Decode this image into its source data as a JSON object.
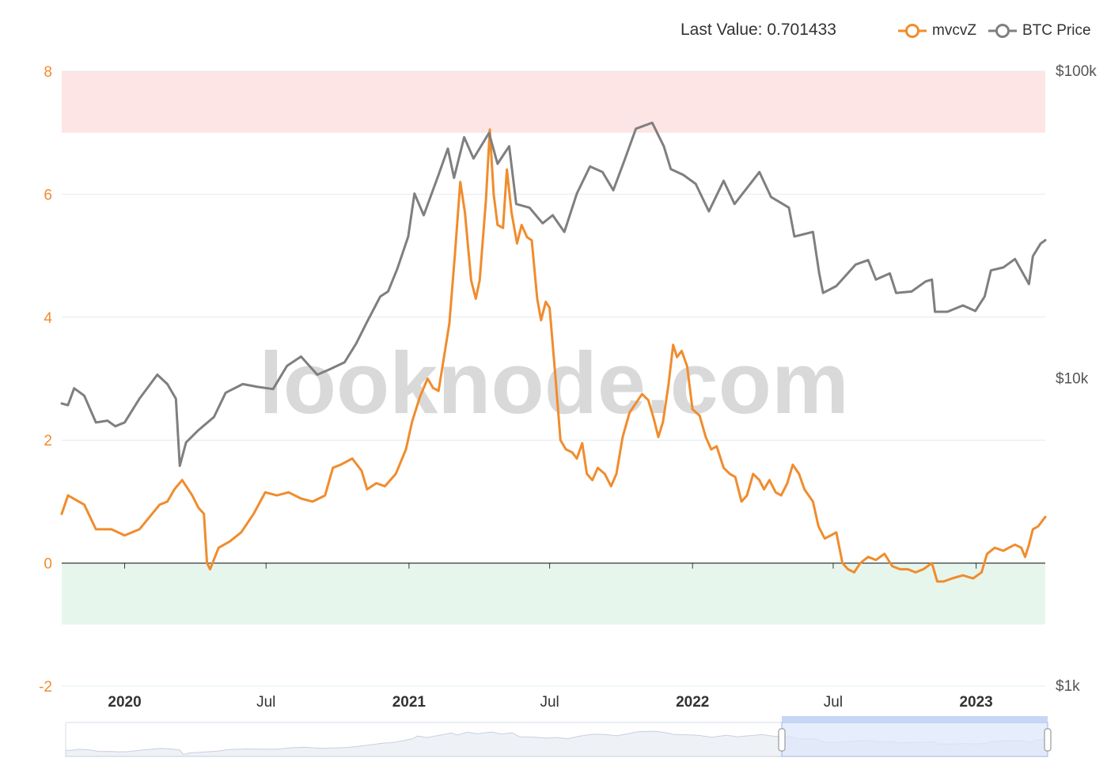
{
  "header": {
    "last_value_label": "Last Value:",
    "last_value": "0.701433"
  },
  "legend": [
    {
      "name": "mvcvZ",
      "color": "#f08c2d",
      "icon": "circle-line-icon"
    },
    {
      "name": "BTC Price",
      "color": "#7f7f7f",
      "icon": "circle-line-icon"
    }
  ],
  "watermark": "looknode.com",
  "colors": {
    "mvcvz": "#f08c2d",
    "btc": "#7f7f7f",
    "upper_band": "#fde5e5",
    "lower_band": "#e7f6ec",
    "grid": "#e2ecee",
    "axis_left_text": "#f08c2d",
    "axis_right_text": "#555555",
    "zoom_selected": "#dde7fb"
  },
  "chart_data": {
    "type": "line",
    "title": "",
    "x_range": [
      "2019-10-12",
      "2023-03-31"
    ],
    "x_ticks": [
      {
        "date": "2020-01-01",
        "label": "2020",
        "bold": true
      },
      {
        "date": "2020-07-01",
        "label": "Jul",
        "bold": false
      },
      {
        "date": "2021-01-01",
        "label": "2021",
        "bold": true
      },
      {
        "date": "2021-07-01",
        "label": "Jul",
        "bold": false
      },
      {
        "date": "2022-01-01",
        "label": "2022",
        "bold": true
      },
      {
        "date": "2022-07-01",
        "label": "Jul",
        "bold": false
      },
      {
        "date": "2023-01-01",
        "label": "2023",
        "bold": true
      }
    ],
    "y_left": {
      "min": -2,
      "max": 8,
      "ticks": [
        "-2",
        "0",
        "2",
        "4",
        "6",
        "8"
      ]
    },
    "y_right": {
      "scale": "log",
      "min": 1000,
      "max": 100000,
      "ticks": [
        {
          "value": 1000,
          "label": "$1k"
        },
        {
          "value": 10000,
          "label": "$10k"
        },
        {
          "value": 100000,
          "label": "$100k"
        }
      ]
    },
    "bands": [
      {
        "from": 7,
        "to": 8,
        "color": "#fde5e5"
      },
      {
        "from": -1,
        "to": 0,
        "color": "#e7f6ec"
      }
    ],
    "grid": true,
    "legend_position": "top-right",
    "series": [
      {
        "name": "mvcvZ",
        "axis": "left",
        "color": "#f08c2d",
        "points": [
          [
            "2019-10-12",
            0.8
          ],
          [
            "2019-10-20",
            1.1
          ],
          [
            "2019-11-10",
            0.95
          ],
          [
            "2019-11-25",
            0.55
          ],
          [
            "2019-12-15",
            0.55
          ],
          [
            "2020-01-01",
            0.45
          ],
          [
            "2020-01-20",
            0.55
          ],
          [
            "2020-02-15",
            0.95
          ],
          [
            "2020-02-25",
            1.0
          ],
          [
            "2020-03-05",
            1.2
          ],
          [
            "2020-03-15",
            1.35
          ],
          [
            "2020-03-28",
            1.1
          ],
          [
            "2020-04-05",
            0.9
          ],
          [
            "2020-04-12",
            0.8
          ],
          [
            "2020-04-16",
            0.0
          ],
          [
            "2020-04-20",
            -0.1
          ],
          [
            "2020-05-01",
            0.25
          ],
          [
            "2020-05-15",
            0.35
          ],
          [
            "2020-05-30",
            0.5
          ],
          [
            "2020-06-15",
            0.8
          ],
          [
            "2020-06-30",
            1.15
          ],
          [
            "2020-07-15",
            1.1
          ],
          [
            "2020-07-30",
            1.15
          ],
          [
            "2020-08-15",
            1.05
          ],
          [
            "2020-08-30",
            1.0
          ],
          [
            "2020-09-15",
            1.1
          ],
          [
            "2020-09-25",
            1.55
          ],
          [
            "2020-10-05",
            1.6
          ],
          [
            "2020-10-20",
            1.7
          ],
          [
            "2020-11-01",
            1.5
          ],
          [
            "2020-11-08",
            1.2
          ],
          [
            "2020-11-20",
            1.3
          ],
          [
            "2020-12-01",
            1.25
          ],
          [
            "2020-12-15",
            1.45
          ],
          [
            "2020-12-28",
            1.85
          ],
          [
            "2021-01-05",
            2.3
          ],
          [
            "2021-01-15",
            2.7
          ],
          [
            "2021-01-25",
            3.0
          ],
          [
            "2021-02-01",
            2.85
          ],
          [
            "2021-02-08",
            2.8
          ],
          [
            "2021-02-15",
            3.35
          ],
          [
            "2021-02-22",
            3.9
          ],
          [
            "2021-03-01",
            5.0
          ],
          [
            "2021-03-08",
            6.2
          ],
          [
            "2021-03-14",
            5.7
          ],
          [
            "2021-03-22",
            4.6
          ],
          [
            "2021-03-28",
            4.3
          ],
          [
            "2021-04-02",
            4.6
          ],
          [
            "2021-04-10",
            5.9
          ],
          [
            "2021-04-15",
            7.05
          ],
          [
            "2021-04-20",
            6.0
          ],
          [
            "2021-04-25",
            5.5
          ],
          [
            "2021-05-02",
            5.45
          ],
          [
            "2021-05-07",
            6.4
          ],
          [
            "2021-05-13",
            5.7
          ],
          [
            "2021-05-20",
            5.2
          ],
          [
            "2021-05-26",
            5.5
          ],
          [
            "2021-06-02",
            5.3
          ],
          [
            "2021-06-08",
            5.25
          ],
          [
            "2021-06-15",
            4.3
          ],
          [
            "2021-06-20",
            3.95
          ],
          [
            "2021-06-26",
            4.25
          ],
          [
            "2021-07-01",
            4.15
          ],
          [
            "2021-07-08",
            3.1
          ],
          [
            "2021-07-15",
            2.0
          ],
          [
            "2021-07-22",
            1.85
          ],
          [
            "2021-07-30",
            1.8
          ],
          [
            "2021-08-05",
            1.7
          ],
          [
            "2021-08-12",
            1.95
          ],
          [
            "2021-08-18",
            1.45
          ],
          [
            "2021-08-25",
            1.35
          ],
          [
            "2021-09-01",
            1.55
          ],
          [
            "2021-09-10",
            1.45
          ],
          [
            "2021-09-18",
            1.25
          ],
          [
            "2021-09-25",
            1.45
          ],
          [
            "2021-10-03",
            2.05
          ],
          [
            "2021-10-12",
            2.45
          ],
          [
            "2021-10-20",
            2.6
          ],
          [
            "2021-10-28",
            2.75
          ],
          [
            "2021-11-05",
            2.65
          ],
          [
            "2021-11-12",
            2.35
          ],
          [
            "2021-11-18",
            2.05
          ],
          [
            "2021-11-24",
            2.3
          ],
          [
            "2021-12-01",
            2.9
          ],
          [
            "2021-12-07",
            3.55
          ],
          [
            "2021-12-12",
            3.35
          ],
          [
            "2021-12-18",
            3.45
          ],
          [
            "2021-12-25",
            3.2
          ],
          [
            "2022-01-01",
            2.5
          ],
          [
            "2022-01-10",
            2.4
          ],
          [
            "2022-01-18",
            2.05
          ],
          [
            "2022-01-25",
            1.85
          ],
          [
            "2022-02-01",
            1.9
          ],
          [
            "2022-02-10",
            1.55
          ],
          [
            "2022-02-18",
            1.45
          ],
          [
            "2022-02-25",
            1.4
          ],
          [
            "2022-03-05",
            1.0
          ],
          [
            "2022-03-12",
            1.1
          ],
          [
            "2022-03-20",
            1.45
          ],
          [
            "2022-03-28",
            1.35
          ],
          [
            "2022-04-03",
            1.2
          ],
          [
            "2022-04-10",
            1.35
          ],
          [
            "2022-04-18",
            1.15
          ],
          [
            "2022-04-25",
            1.1
          ],
          [
            "2022-05-03",
            1.3
          ],
          [
            "2022-05-10",
            1.6
          ],
          [
            "2022-05-18",
            1.45
          ],
          [
            "2022-05-25",
            1.2
          ],
          [
            "2022-06-05",
            1.0
          ],
          [
            "2022-06-12",
            0.6
          ],
          [
            "2022-06-20",
            0.4
          ],
          [
            "2022-06-28",
            0.45
          ],
          [
            "2022-07-05",
            0.5
          ],
          [
            "2022-07-13",
            0.0
          ],
          [
            "2022-07-20",
            -0.1
          ],
          [
            "2022-07-28",
            -0.15
          ],
          [
            "2022-08-05",
            0.0
          ],
          [
            "2022-08-15",
            0.1
          ],
          [
            "2022-08-25",
            0.05
          ],
          [
            "2022-09-05",
            0.15
          ],
          [
            "2022-09-15",
            -0.05
          ],
          [
            "2022-09-25",
            -0.1
          ],
          [
            "2022-10-05",
            -0.1
          ],
          [
            "2022-10-15",
            -0.15
          ],
          [
            "2022-10-25",
            -0.1
          ],
          [
            "2022-11-05",
            0.0
          ],
          [
            "2022-11-12",
            -0.3
          ],
          [
            "2022-11-20",
            -0.3
          ],
          [
            "2022-12-01",
            -0.25
          ],
          [
            "2022-12-15",
            -0.2
          ],
          [
            "2022-12-28",
            -0.25
          ],
          [
            "2023-01-08",
            -0.15
          ],
          [
            "2023-01-15",
            0.15
          ],
          [
            "2023-01-25",
            0.25
          ],
          [
            "2023-02-05",
            0.2
          ],
          [
            "2023-02-12",
            0.25
          ],
          [
            "2023-02-20",
            0.3
          ],
          [
            "2023-02-28",
            0.25
          ],
          [
            "2023-03-05",
            0.1
          ],
          [
            "2023-03-10",
            0.3
          ],
          [
            "2023-03-15",
            0.55
          ],
          [
            "2023-03-22",
            0.6
          ],
          [
            "2023-03-31",
            0.75
          ]
        ]
      },
      {
        "name": "BTC Price",
        "axis": "right",
        "color": "#7f7f7f",
        "points": [
          [
            "2019-10-12",
            8300
          ],
          [
            "2019-10-20",
            8200
          ],
          [
            "2019-10-28",
            9300
          ],
          [
            "2019-11-10",
            8800
          ],
          [
            "2019-11-25",
            7200
          ],
          [
            "2019-12-10",
            7300
          ],
          [
            "2019-12-20",
            7000
          ],
          [
            "2020-01-01",
            7200
          ],
          [
            "2020-01-20",
            8600
          ],
          [
            "2020-02-12",
            10300
          ],
          [
            "2020-02-25",
            9600
          ],
          [
            "2020-03-07",
            8600
          ],
          [
            "2020-03-12",
            5200
          ],
          [
            "2020-03-20",
            6200
          ],
          [
            "2020-04-05",
            6800
          ],
          [
            "2020-04-25",
            7500
          ],
          [
            "2020-05-10",
            9000
          ],
          [
            "2020-06-01",
            9600
          ],
          [
            "2020-06-20",
            9400
          ],
          [
            "2020-07-10",
            9250
          ],
          [
            "2020-07-28",
            11000
          ],
          [
            "2020-08-15",
            11800
          ],
          [
            "2020-09-05",
            10300
          ],
          [
            "2020-09-20",
            10700
          ],
          [
            "2020-10-10",
            11300
          ],
          [
            "2020-10-25",
            13000
          ],
          [
            "2020-11-08",
            15300
          ],
          [
            "2020-11-25",
            18500
          ],
          [
            "2020-12-05",
            19200
          ],
          [
            "2020-12-17",
            22800
          ],
          [
            "2020-12-31",
            29000
          ],
          [
            "2021-01-08",
            40000
          ],
          [
            "2021-01-20",
            34000
          ],
          [
            "2021-02-08",
            46000
          ],
          [
            "2021-02-20",
            56000
          ],
          [
            "2021-02-28",
            45000
          ],
          [
            "2021-03-13",
            61000
          ],
          [
            "2021-03-25",
            52000
          ],
          [
            "2021-04-14",
            63000
          ],
          [
            "2021-04-25",
            50000
          ],
          [
            "2021-05-10",
            57000
          ],
          [
            "2021-05-19",
            37000
          ],
          [
            "2021-06-05",
            36000
          ],
          [
            "2021-06-22",
            32000
          ],
          [
            "2021-07-05",
            34000
          ],
          [
            "2021-07-20",
            30000
          ],
          [
            "2021-08-05",
            40000
          ],
          [
            "2021-08-22",
            49000
          ],
          [
            "2021-09-07",
            47000
          ],
          [
            "2021-09-21",
            41000
          ],
          [
            "2021-10-05",
            51000
          ],
          [
            "2021-10-20",
            65000
          ],
          [
            "2021-11-10",
            68000
          ],
          [
            "2021-11-25",
            57000
          ],
          [
            "2021-12-04",
            48000
          ],
          [
            "2021-12-20",
            46000
          ],
          [
            "2022-01-05",
            43000
          ],
          [
            "2022-01-22",
            35000
          ],
          [
            "2022-02-10",
            44000
          ],
          [
            "2022-02-24",
            37000
          ],
          [
            "2022-03-28",
            47000
          ],
          [
            "2022-04-12",
            39000
          ],
          [
            "2022-05-05",
            36000
          ],
          [
            "2022-05-12",
            29000
          ],
          [
            "2022-06-05",
            30000
          ],
          [
            "2022-06-13",
            22000
          ],
          [
            "2022-06-18",
            19000
          ],
          [
            "2022-07-05",
            20000
          ],
          [
            "2022-07-30",
            23500
          ],
          [
            "2022-08-15",
            24300
          ],
          [
            "2022-08-25",
            21000
          ],
          [
            "2022-09-12",
            22000
          ],
          [
            "2022-09-20",
            19000
          ],
          [
            "2022-10-10",
            19200
          ],
          [
            "2022-10-28",
            20700
          ],
          [
            "2022-11-05",
            21000
          ],
          [
            "2022-11-09",
            16500
          ],
          [
            "2022-11-25",
            16500
          ],
          [
            "2022-12-15",
            17300
          ],
          [
            "2022-12-31",
            16600
          ],
          [
            "2023-01-12",
            18500
          ],
          [
            "2023-01-20",
            22500
          ],
          [
            "2023-02-05",
            23000
          ],
          [
            "2023-02-20",
            24500
          ],
          [
            "2023-03-10",
            20300
          ],
          [
            "2023-03-15",
            25000
          ],
          [
            "2023-03-25",
            27500
          ],
          [
            "2023-03-31",
            28200
          ]
        ]
      }
    ]
  }
}
